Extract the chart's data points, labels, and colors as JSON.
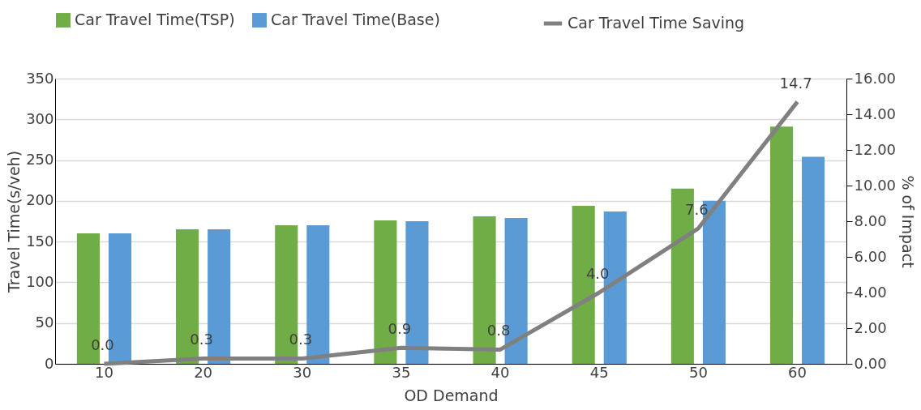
{
  "chart_data": {
    "type": "bar",
    "categories": [
      "10",
      "20",
      "30",
      "35",
      "40",
      "45",
      "50",
      "60"
    ],
    "xlabel": "OD Demand",
    "ylabel": "Travel Time(s/veh)",
    "y2label": "% of Impact",
    "series": [
      {
        "name": "Car Travel Time(TSP)",
        "color": "#70ad47",
        "values": [
          160,
          165,
          170,
          176,
          181,
          194,
          215,
          291
        ]
      },
      {
        "name": "Car Travel Time(Base)",
        "color": "#5b9bd5",
        "values": [
          160,
          165,
          170,
          175,
          179,
          187,
          200,
          254
        ]
      },
      {
        "name": "Car Travel Time Saving",
        "type": "line",
        "axis": "y2",
        "color": "#808080",
        "values": [
          0.0,
          0.3,
          0.3,
          0.9,
          0.8,
          4.0,
          7.6,
          14.7
        ],
        "value_labels": [
          "0.0",
          "0.3",
          "0.3",
          "0.9",
          "0.8",
          "4.0",
          "7.6",
          "14.7"
        ]
      }
    ],
    "ylim": [
      0,
      350
    ],
    "yticks": [
      0,
      50,
      100,
      150,
      200,
      250,
      300,
      350
    ],
    "y2lim": [
      0,
      16
    ],
    "y2ticks": [
      {
        "value": 0,
        "label": "0.00"
      },
      {
        "value": 2,
        "label": "2.00"
      },
      {
        "value": 4,
        "label": "4.00"
      },
      {
        "value": 6,
        "label": "6.00"
      },
      {
        "value": 8,
        "label": "8.00"
      },
      {
        "value": 10,
        "label": "10.00"
      },
      {
        "value": 12,
        "label": "12.00"
      },
      {
        "value": 14,
        "label": "14.00"
      },
      {
        "value": 16,
        "label": "16.00"
      }
    ],
    "grid": "y",
    "legend": "top"
  }
}
